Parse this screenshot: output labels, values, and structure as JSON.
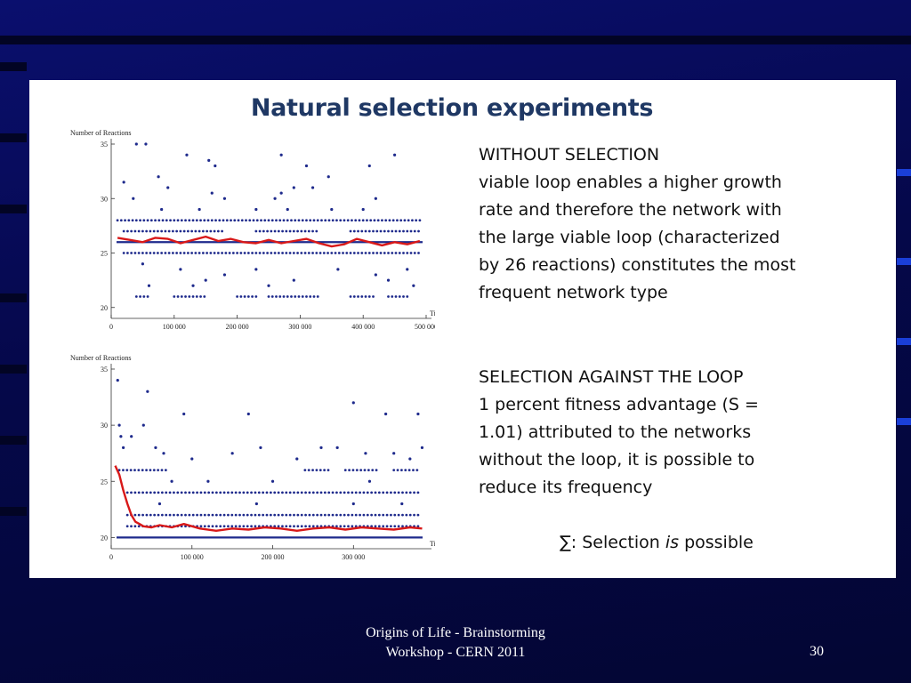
{
  "slide": {
    "title": "Natural selection experiments",
    "block1": {
      "heading": "WITHOUT SELECTION",
      "lines": [
        "viable loop enables a higher growth",
        "rate and therefore the network with",
        "the large viable loop (characterized",
        "by 26 reactions) constitutes the most",
        "frequent network type"
      ]
    },
    "block2": {
      "heading": "SELECTION AGAINST THE LOOP",
      "lines": [
        "1 percent fitness advantage (S =",
        "1.01) attributed to the networks",
        "without the loop, it is possible to",
        "reduce its frequency"
      ]
    },
    "summary": {
      "prefix": "∑: Selection ",
      "emph": "is",
      "suffix": " possible"
    },
    "footer": {
      "line1": "Origins of Life - Brainstorming",
      "line2": "Workshop - CERN 2011"
    },
    "page_number": "30"
  },
  "colors": {
    "background": "#050a5a",
    "title": "#1f3864",
    "points": "#1e2a8c",
    "average_line": "#d81818",
    "reference_line": "#1e2a8c"
  },
  "chart_data": [
    {
      "type": "scatter",
      "title": "",
      "ylabel": "Number of Reactions",
      "xlabel": "Time",
      "xlim": [
        0,
        500000
      ],
      "ylim": [
        19,
        35
      ],
      "x_ticks": [
        0,
        100000,
        200000,
        300000,
        400000,
        500000
      ],
      "x_tick_labels": [
        "0",
        "100 000",
        "200 000",
        "300 000",
        "400 000",
        "500 000"
      ],
      "y_ticks": [
        20,
        25,
        30,
        35
      ],
      "y_tick_labels": [
        "20",
        "25",
        "30",
        "35"
      ],
      "reference_line": 26,
      "levels": [
        {
          "y": 28,
          "spans": [
            [
              10000,
              490000
            ]
          ]
        },
        {
          "y": 27,
          "spans": [
            [
              20000,
              180000
            ],
            [
              230000,
              330000
            ],
            [
              380000,
              490000
            ]
          ]
        },
        {
          "y": 25,
          "spans": [
            [
              20000,
              490000
            ]
          ]
        },
        {
          "y": 21,
          "spans": [
            [
              40000,
              60000
            ],
            [
              100000,
              150000
            ],
            [
              200000,
              230000
            ],
            [
              250000,
              330000
            ],
            [
              380000,
              420000
            ],
            [
              440000,
              470000
            ]
          ]
        }
      ],
      "points": [
        [
          40000,
          35
        ],
        [
          55000,
          35
        ],
        [
          120000,
          34
        ],
        [
          155000,
          33.5
        ],
        [
          270000,
          34
        ],
        [
          450000,
          34
        ],
        [
          165000,
          33
        ],
        [
          310000,
          33
        ],
        [
          410000,
          33
        ],
        [
          75000,
          32
        ],
        [
          345000,
          32
        ],
        [
          20000,
          31.5
        ],
        [
          90000,
          31
        ],
        [
          290000,
          31
        ],
        [
          320000,
          31
        ],
        [
          160000,
          30.5
        ],
        [
          270000,
          30.5
        ],
        [
          180000,
          30
        ],
        [
          260000,
          30
        ],
        [
          35000,
          30
        ],
        [
          420000,
          30
        ],
        [
          80000,
          29
        ],
        [
          140000,
          29
        ],
        [
          230000,
          29
        ],
        [
          280000,
          29
        ],
        [
          350000,
          29
        ],
        [
          400000,
          29
        ],
        [
          50000,
          24
        ],
        [
          110000,
          23.5
        ],
        [
          230000,
          23.5
        ],
        [
          360000,
          23.5
        ],
        [
          470000,
          23.5
        ],
        [
          180000,
          23
        ],
        [
          420000,
          23
        ],
        [
          150000,
          22.5
        ],
        [
          290000,
          22.5
        ],
        [
          440000,
          22.5
        ],
        [
          60000,
          22
        ],
        [
          130000,
          22
        ],
        [
          250000,
          22
        ],
        [
          480000,
          22
        ]
      ],
      "average": {
        "name": "",
        "x": [
          10000,
          30000,
          50000,
          70000,
          90000,
          110000,
          130000,
          150000,
          170000,
          190000,
          210000,
          230000,
          250000,
          270000,
          290000,
          310000,
          330000,
          350000,
          370000,
          390000,
          410000,
          430000,
          450000,
          470000,
          490000
        ],
        "y": [
          26.4,
          26.2,
          26.0,
          26.4,
          26.3,
          25.9,
          26.2,
          26.5,
          26.1,
          26.3,
          26.0,
          25.9,
          26.2,
          25.9,
          26.1,
          26.3,
          25.9,
          25.6,
          25.8,
          26.3,
          26.0,
          25.7,
          26.0,
          25.8,
          26.1
        ]
      }
    },
    {
      "type": "scatter",
      "title": "",
      "ylabel": "Number of Reactions",
      "xlabel": "Time",
      "xlim": [
        0,
        390000
      ],
      "ylim": [
        19,
        35
      ],
      "x_ticks": [
        0,
        100000,
        200000,
        300000
      ],
      "x_tick_labels": [
        "0",
        "100 000",
        "200 000",
        "300 000"
      ],
      "y_ticks": [
        20,
        25,
        30,
        35
      ],
      "y_tick_labels": [
        "20",
        "25",
        "30",
        "35"
      ],
      "reference_line": 20,
      "levels": [
        {
          "y": 26,
          "spans": [
            [
              10000,
              70000
            ],
            [
              240000,
              270000
            ],
            [
              290000,
              330000
            ],
            [
              350000,
              380000
            ]
          ]
        },
        {
          "y": 24,
          "spans": [
            [
              20000,
              380000
            ]
          ]
        },
        {
          "y": 22,
          "spans": [
            [
              20000,
              380000
            ]
          ]
        },
        {
          "y": 21,
          "spans": [
            [
              20000,
              380000
            ]
          ]
        }
      ],
      "points": [
        [
          8000,
          34
        ],
        [
          45000,
          33
        ],
        [
          380000,
          31
        ],
        [
          340000,
          31
        ],
        [
          300000,
          32
        ],
        [
          90000,
          31
        ],
        [
          170000,
          31
        ],
        [
          10000,
          30
        ],
        [
          40000,
          30
        ],
        [
          12000,
          29
        ],
        [
          15000,
          28
        ],
        [
          25000,
          29
        ],
        [
          55000,
          28
        ],
        [
          65000,
          27.5
        ],
        [
          100000,
          27
        ],
        [
          150000,
          27.5
        ],
        [
          185000,
          28
        ],
        [
          230000,
          27
        ],
        [
          260000,
          28
        ],
        [
          280000,
          28
        ],
        [
          315000,
          27.5
        ],
        [
          350000,
          27.5
        ],
        [
          370000,
          27
        ],
        [
          385000,
          28
        ],
        [
          75000,
          25
        ],
        [
          120000,
          25
        ],
        [
          200000,
          25
        ],
        [
          320000,
          25
        ],
        [
          60000,
          23
        ],
        [
          180000,
          23
        ],
        [
          300000,
          23
        ],
        [
          360000,
          23
        ]
      ],
      "average": {
        "name": "",
        "x": [
          5000,
          10000,
          15000,
          20000,
          25000,
          30000,
          35000,
          40000,
          50000,
          60000,
          75000,
          90000,
          110000,
          130000,
          150000,
          170000,
          190000,
          210000,
          230000,
          250000,
          270000,
          290000,
          310000,
          330000,
          350000,
          370000,
          385000
        ],
        "y": [
          26.4,
          25.6,
          24.2,
          23.0,
          22.0,
          21.4,
          21.2,
          21.0,
          20.9,
          21.1,
          20.9,
          21.2,
          20.8,
          20.6,
          20.8,
          20.7,
          20.9,
          20.8,
          20.6,
          20.8,
          20.9,
          20.7,
          20.9,
          20.8,
          20.7,
          20.9,
          20.8
        ]
      }
    }
  ]
}
